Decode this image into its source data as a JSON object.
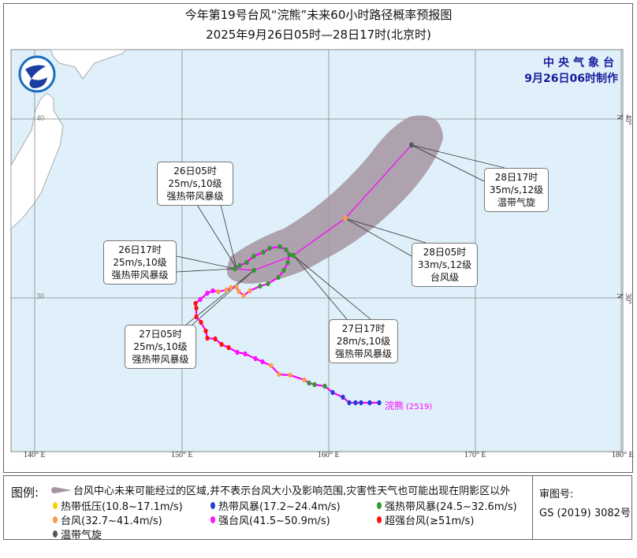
{
  "header": {
    "title": "今年第19号台风“浣熊”未来60小时路径概率预报图",
    "subtitle": "2025年9月26日05时—28日17时(北京时)"
  },
  "issuer": {
    "name": "中央气象台",
    "issued": "9月26日06时制作"
  },
  "logo": {
    "icon": "cma-logo-icon",
    "color": "#1a3fa0"
  },
  "map": {
    "longitude_labels": [
      "140° E",
      "150° E",
      "160° E",
      "170° E",
      "180° E"
    ],
    "latitude_labels_left": [
      "40",
      "30"
    ],
    "latitude_labels_right": [
      "40° N",
      "30° N"
    ],
    "colors": {
      "ocean": "#dff0fa",
      "land": "#ffffff",
      "cone": "#a5949f",
      "track": "#ff00ff"
    },
    "typhoon_label": "浣熊",
    "typhoon_id": "(2519)"
  },
  "forecast_labels": [
    {
      "time": "26日05时",
      "wind": "25m/s,10级",
      "grade": "强热带风暴级"
    },
    {
      "time": "26日17时",
      "wind": "25m/s,10级",
      "grade": "强热带风暴级"
    },
    {
      "time": "27日05时",
      "wind": "25m/s,10级",
      "grade": "强热带风暴级"
    },
    {
      "time": "27日17时",
      "wind": "28m/s,10级",
      "grade": "强热带风暴级"
    },
    {
      "time": "28日05时",
      "wind": "33m/s,12级",
      "grade": "台风级"
    },
    {
      "time": "28日17时",
      "wind": "35m/s,12级",
      "grade": "温带气旋"
    }
  ],
  "legend": {
    "title": "图例:",
    "cone_text": "台风中心未来可能经过的区域,并不表示台风大小及影响范围,灾害性天气也可能出现在阴影区以外",
    "items": [
      {
        "label": "热带低压(10.8~17.1m/s)",
        "color": "#f5d000"
      },
      {
        "label": "热带风暴(17.2~24.4m/s)",
        "color": "#1f3fd0"
      },
      {
        "label": "强热带风暴(24.5~32.6m/s)",
        "color": "#2e9a2e"
      },
      {
        "label": "台风(32.7~41.4m/s)",
        "color": "#ff9a4a"
      },
      {
        "label": "强台风(41.5~50.9m/s)",
        "color": "#ff10ff"
      },
      {
        "label": "超强台风(≥51m/s)",
        "color": "#ff1010"
      },
      {
        "label": "温带气旋",
        "color": "#555555"
      }
    ]
  },
  "approval": {
    "label": "审图号:",
    "number": "GS (2019) 3082号"
  }
}
